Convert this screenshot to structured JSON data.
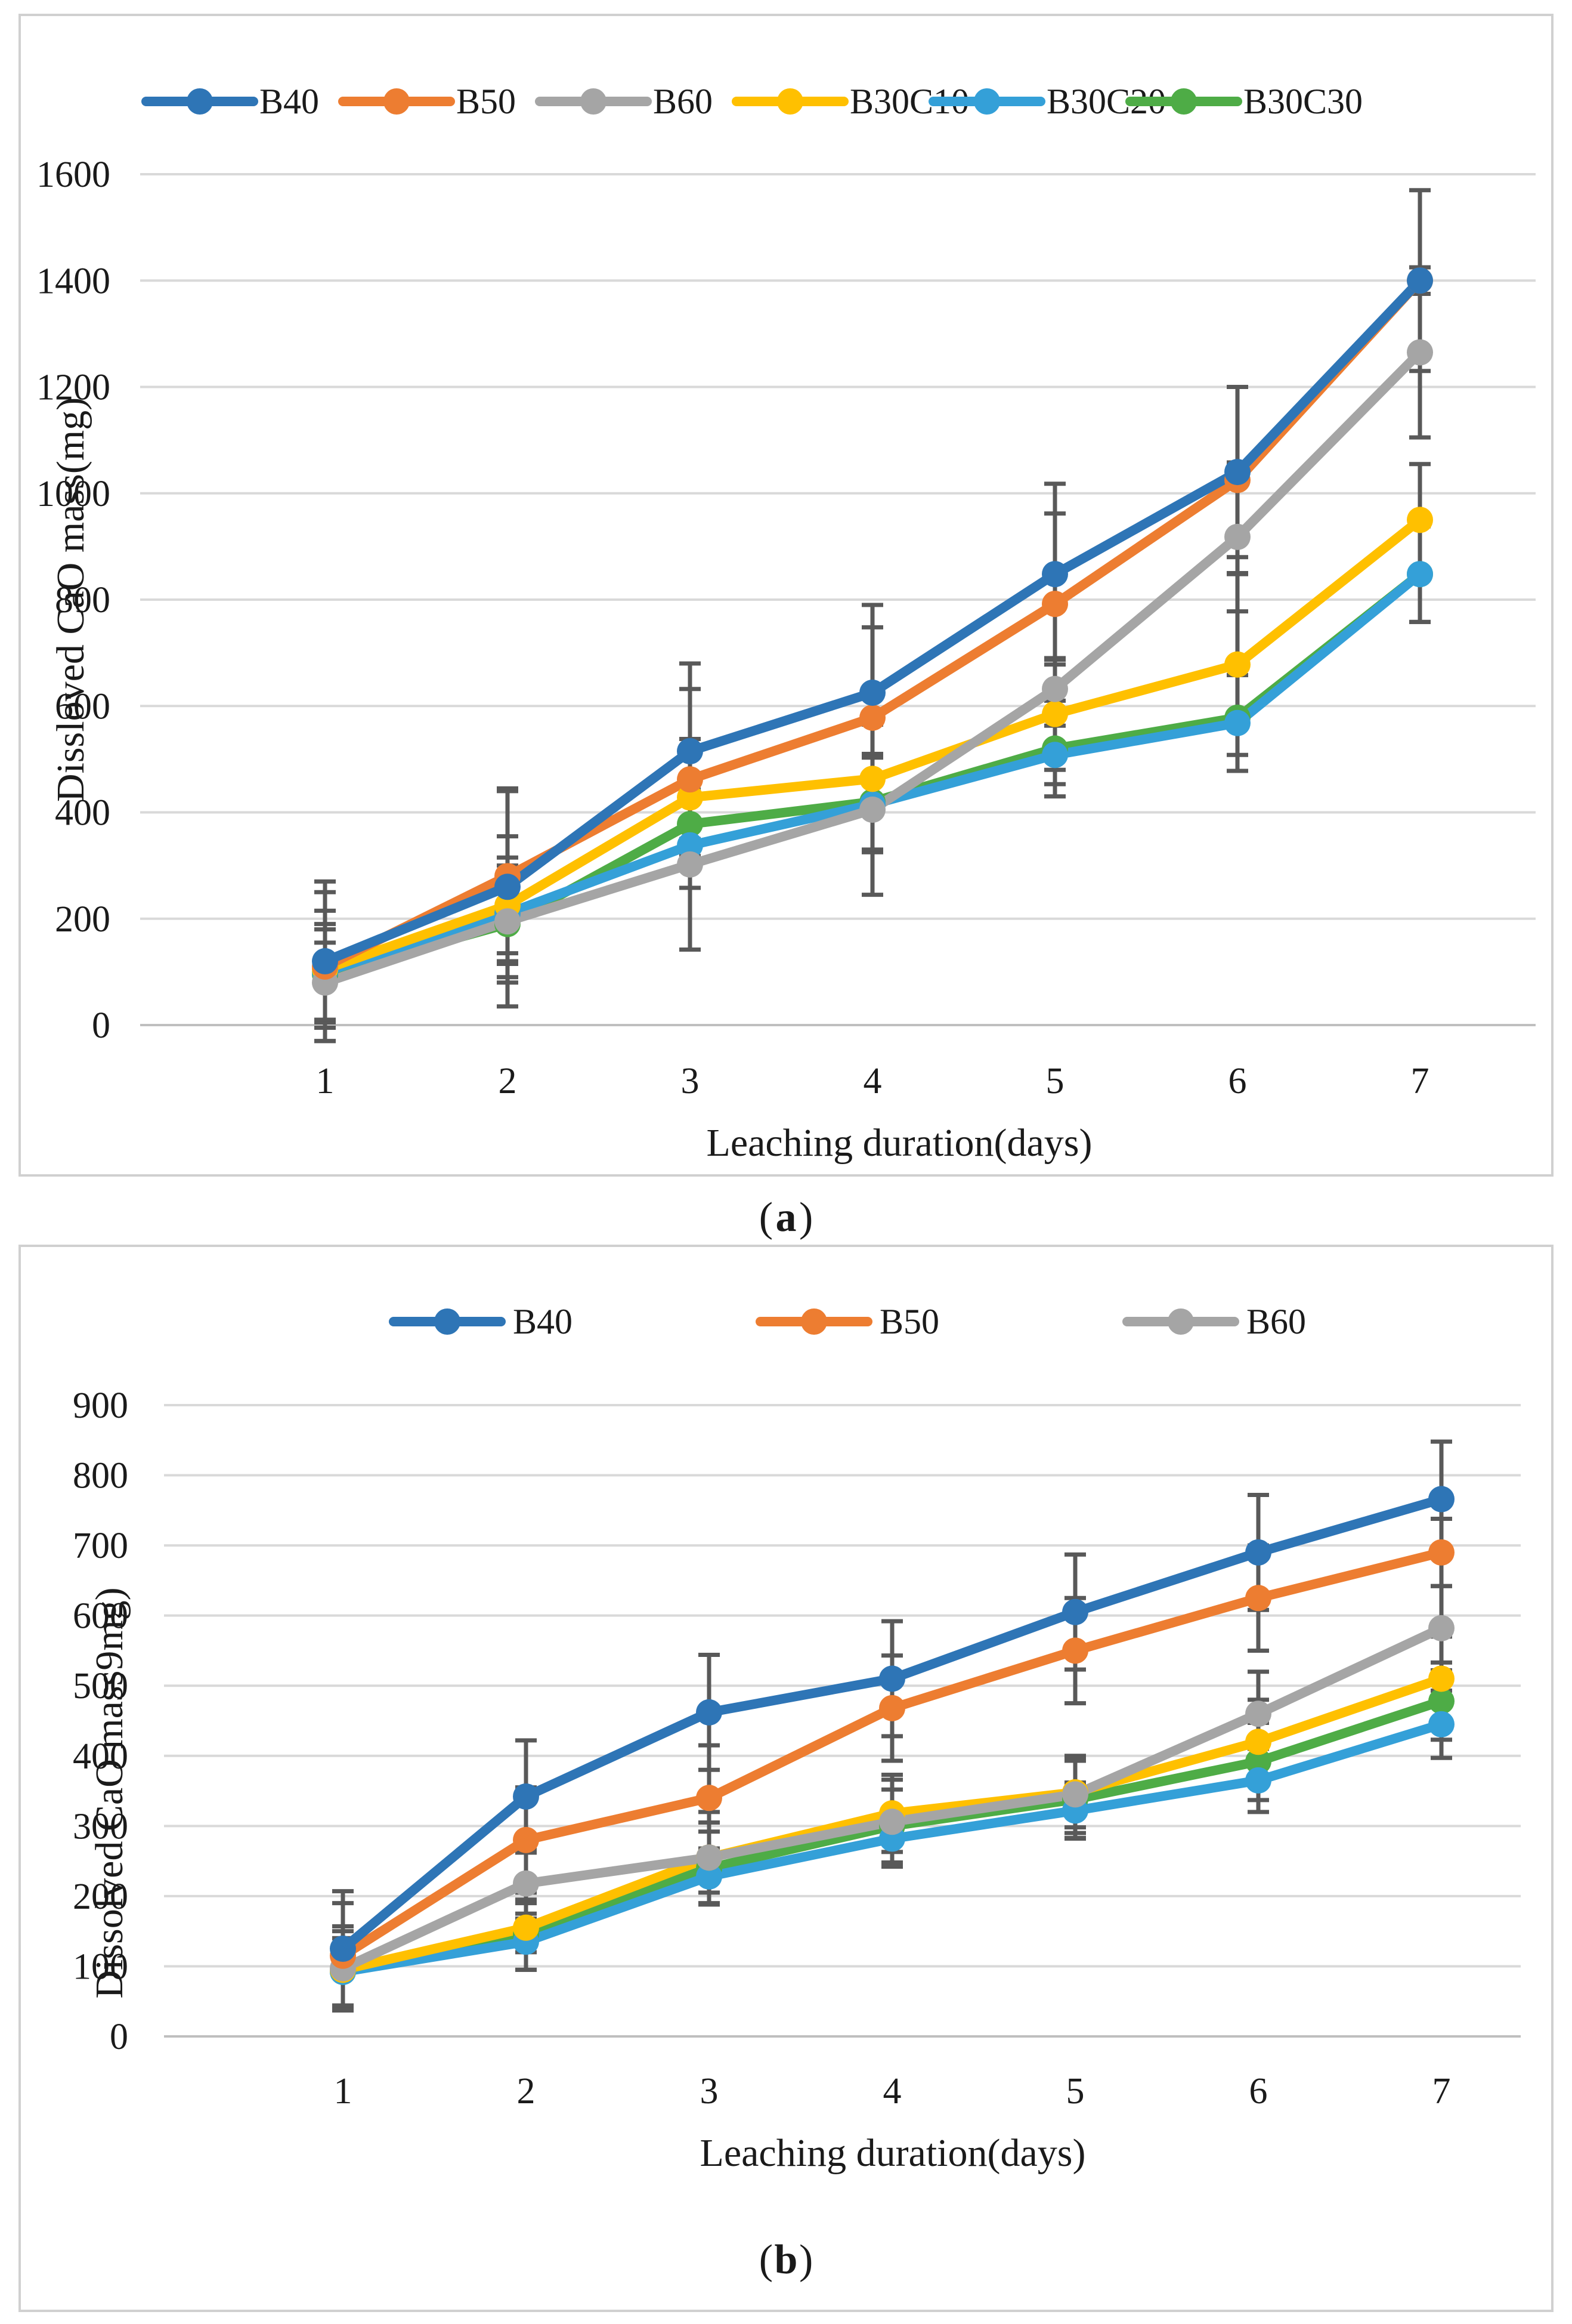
{
  "colors": {
    "B40": "#2e75b6",
    "B50": "#ed7d31",
    "B60": "#a5a5a5",
    "B30C10": "#ffc000",
    "B30C20": "#34a0d8",
    "B30C30": "#4eac46",
    "error_bar": "#595959"
  },
  "chart_data": [
    {
      "type": "line",
      "panel_label": "a",
      "title": "",
      "xlabel": "Leaching duration(days)",
      "ylabel": "Dissloved CaO mass(mg)",
      "ylim": [
        0,
        1600
      ],
      "yticks": [
        0,
        200,
        400,
        600,
        800,
        1000,
        1200,
        1400,
        1600
      ],
      "grid": true,
      "legend": [
        "B40",
        "B50",
        "B60",
        "B30C10",
        "B30C20",
        "B30C30"
      ],
      "legend_position": "top",
      "x": [
        1,
        2,
        3,
        4,
        5,
        6,
        7
      ],
      "series": [
        {
          "name": "B40",
          "values": [
            120,
            260,
            515,
            625,
            848,
            1040,
            1400
          ],
          "error": [
            150,
            180,
            165,
            165,
            170,
            160,
            170
          ]
        },
        {
          "name": "B50",
          "values": [
            110,
            280,
            462,
            578,
            792,
            1025,
            1400
          ],
          "error": [
            140,
            165,
            170,
            170,
            170,
            175,
            25
          ]
        },
        {
          "name": "B60",
          "values": [
            80,
            195,
            302,
            405,
            632,
            918,
            1265
          ],
          "error": [
            75,
            160,
            160,
            160,
            55,
            140,
            160
          ]
        },
        {
          "name": "B30C10",
          "values": [
            105,
            225,
            428,
            463,
            585,
            678,
            950
          ],
          "error": [
            110,
            90,
            110,
            40,
            105,
            170,
            105
          ]
        },
        {
          "name": "B30C20",
          "values": [
            100,
            210,
            338,
            415,
            508,
            568,
            848
          ],
          "error": [
            90,
            90,
            80,
            90,
            55,
            90,
            90
          ]
        },
        {
          "name": "B30C30",
          "values": [
            95,
            190,
            378,
            420,
            520,
            578,
            848
          ],
          "error": [
            85,
            100,
            65,
            90,
            90,
            100,
            90
          ]
        }
      ]
    },
    {
      "type": "line",
      "panel_label": "b",
      "title": "",
      "xlabel": "Leaching duration(days)",
      "ylabel": "Dissolved CaO mass9mg)",
      "ylim": [
        0,
        900
      ],
      "yticks": [
        0,
        100,
        200,
        300,
        400,
        500,
        600,
        700,
        800,
        900
      ],
      "grid": true,
      "legend": [
        "B40",
        "B50",
        "B60"
      ],
      "legend_position": "top",
      "x": [
        1,
        2,
        3,
        4,
        5,
        6,
        7
      ],
      "series": [
        {
          "name": "B40",
          "values": [
            125,
            342,
            462,
            510,
            605,
            690,
            766
          ],
          "error": [
            82,
            80,
            82,
            82,
            82,
            82,
            82
          ]
        },
        {
          "name": "B50",
          "values": [
            115,
            280,
            340,
            468,
            550,
            625,
            690
          ],
          "error": [
            75,
            75,
            75,
            75,
            75,
            75,
            48
          ]
        },
        {
          "name": "B60",
          "values": [
            97,
            218,
            255,
            306,
            345,
            460,
            582
          ],
          "error": [
            60,
            50,
            65,
            60,
            55,
            60,
            60
          ]
        },
        {
          "name": "B30C10",
          "values": [
            95,
            155,
            255,
            318,
            348,
            420,
            510
          ],
          "error": [
            55,
            35,
            50,
            55,
            50,
            60,
            60
          ]
        },
        {
          "name": "B30C20",
          "values": [
            92,
            135,
            228,
            282,
            322,
            365,
            445
          ],
          "error": [
            48,
            40,
            40,
            40,
            40,
            45,
            48
          ]
        },
        {
          "name": "B30C30",
          "values": [
            92,
            145,
            240,
            300,
            338,
            392,
            478
          ],
          "error": [
            48,
            50,
            52,
            52,
            55,
            55,
            55
          ]
        }
      ]
    }
  ]
}
